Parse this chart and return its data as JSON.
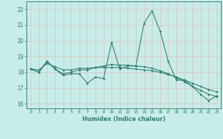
{
  "title": "",
  "xlabel": "Humidex (Indice chaleur)",
  "ylabel": "",
  "bg_color": "#c8ece8",
  "grid_color": "#d8c4c4",
  "line_color": "#2e7d6e",
  "x": [
    0,
    1,
    2,
    3,
    4,
    5,
    6,
    7,
    8,
    9,
    10,
    11,
    12,
    13,
    14,
    15,
    16,
    17,
    18,
    19,
    20,
    21,
    22,
    23
  ],
  "xlim": [
    -0.5,
    23.5
  ],
  "ylim": [
    15.7,
    22.5
  ],
  "yticks": [
    16,
    17,
    18,
    19,
    20,
    21,
    22
  ],
  "series1": [
    18.2,
    18.0,
    18.7,
    18.2,
    17.8,
    17.9,
    17.9,
    17.3,
    17.7,
    17.6,
    19.9,
    18.2,
    18.4,
    18.4,
    21.1,
    21.9,
    20.6,
    18.7,
    17.5,
    17.5,
    17.1,
    16.6,
    16.2,
    16.5
  ],
  "series2": [
    18.2,
    18.15,
    18.55,
    18.35,
    18.15,
    18.15,
    18.25,
    18.25,
    18.3,
    18.3,
    18.3,
    18.3,
    18.25,
    18.2,
    18.15,
    18.1,
    18.0,
    17.85,
    17.7,
    17.5,
    17.3,
    17.1,
    16.9,
    16.75
  ],
  "series3": [
    18.2,
    18.0,
    18.7,
    18.2,
    17.9,
    18.0,
    18.15,
    18.15,
    18.3,
    18.4,
    18.5,
    18.45,
    18.45,
    18.4,
    18.35,
    18.25,
    18.1,
    17.9,
    17.65,
    17.4,
    17.1,
    16.85,
    16.6,
    16.45
  ]
}
